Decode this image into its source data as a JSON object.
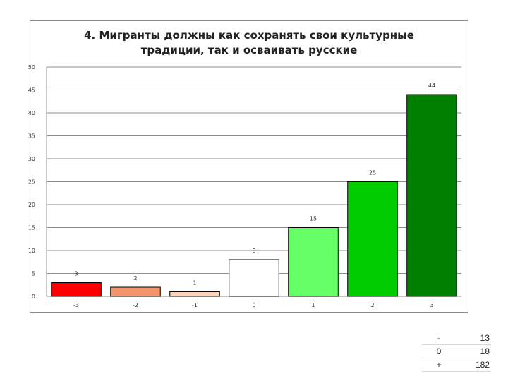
{
  "chart_data": {
    "type": "bar",
    "title": "4. Мигранты должны как сохранять свои культурные\nтрадиции, так и осваивать русские",
    "categories": [
      "-3",
      "-2",
      "-1",
      "0",
      "1",
      "2",
      "3"
    ],
    "values": [
      3,
      2,
      1,
      8,
      15,
      25,
      44
    ],
    "data_labels": [
      "3",
      "2",
      "1",
      "8",
      "15",
      "25",
      "44"
    ],
    "bar_colors": [
      "#ff0000",
      "#f4946a",
      "#fbd3b6",
      "#ffffff",
      "#66ff66",
      "#00cc00",
      "#008000"
    ],
    "ylim": [
      0,
      50
    ],
    "yticks": [
      0,
      5,
      10,
      15,
      20,
      25,
      30,
      35,
      40,
      45,
      50
    ],
    "xlabel": "",
    "ylabel": "",
    "grid": true,
    "legend": "none"
  },
  "summary": {
    "rows": [
      {
        "label": "-",
        "value": "13"
      },
      {
        "label": "0",
        "value": "18"
      },
      {
        "label": "+",
        "value": "182"
      }
    ]
  }
}
